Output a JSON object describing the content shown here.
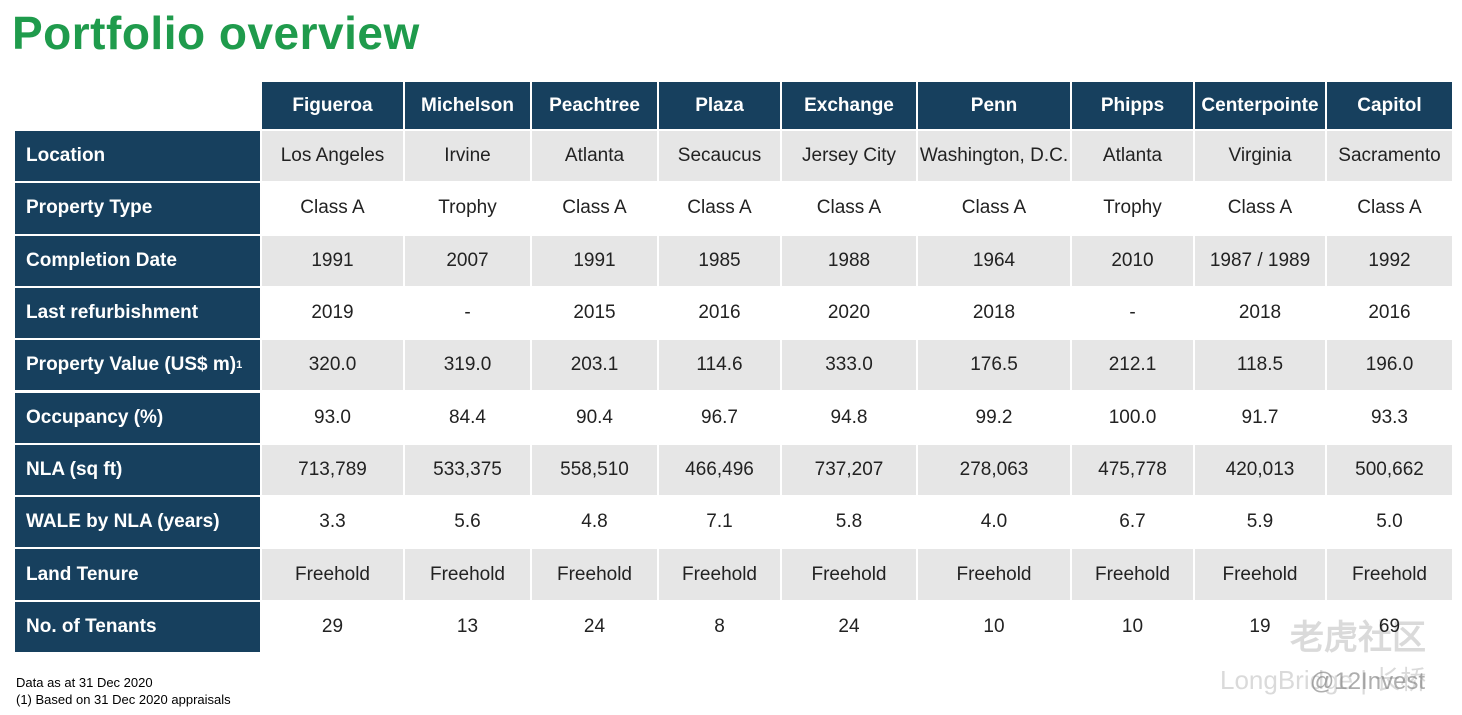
{
  "header": {
    "title": "Portfolio overview"
  },
  "table": {
    "columns": [
      "Figueroa",
      "Michelson",
      "Peachtree",
      "Plaza",
      "Exchange",
      "Penn",
      "Phipps",
      "Centerpointe",
      "Capitol"
    ],
    "rows": [
      {
        "label": "Location",
        "cells": [
          "Los Angeles",
          "Irvine",
          "Atlanta",
          "Secaucus",
          "Jersey City",
          "Washington, D.C.",
          "Atlanta",
          "Virginia",
          "Sacramento"
        ]
      },
      {
        "label": "Property Type",
        "cells": [
          "Class A",
          "Trophy",
          "Class A",
          "Class A",
          "Class A",
          "Class A",
          "Trophy",
          "Class A",
          "Class A"
        ]
      },
      {
        "label": "Completion Date",
        "cells": [
          "1991",
          "2007",
          "1991",
          "1985",
          "1988",
          "1964",
          "2010",
          "1987 / 1989",
          "1992"
        ]
      },
      {
        "label": "Last refurbishment",
        "cells": [
          "2019",
          "-",
          "2015",
          "2016",
          "2020",
          "2018",
          "-",
          "2018",
          "2016"
        ]
      },
      {
        "label": "Property Value (US$ m)",
        "sup": "1",
        "cells": [
          "320.0",
          "319.0",
          "203.1",
          "114.6",
          "333.0",
          "176.5",
          "212.1",
          "118.5",
          "196.0"
        ]
      },
      {
        "label": "Occupancy (%)",
        "cells": [
          "93.0",
          "84.4",
          "90.4",
          "96.7",
          "94.8",
          "99.2",
          "100.0",
          "91.7",
          "93.3"
        ]
      },
      {
        "label": "NLA (sq ft)",
        "cells": [
          "713,789",
          "533,375",
          "558,510",
          "466,496",
          "737,207",
          "278,063",
          "475,778",
          "420,013",
          "500,662"
        ]
      },
      {
        "label": "WALE by NLA (years)",
        "cells": [
          "3.3",
          "5.6",
          "4.8",
          "7.1",
          "5.8",
          "4.0",
          "6.7",
          "5.9",
          "5.0"
        ]
      },
      {
        "label": "Land Tenure",
        "cells": [
          "Freehold",
          "Freehold",
          "Freehold",
          "Freehold",
          "Freehold",
          "Freehold",
          "Freehold",
          "Freehold",
          "Freehold"
        ]
      },
      {
        "label": "No. of Tenants",
        "cells": [
          "29",
          "13",
          "24",
          "8",
          "24",
          "10",
          "10",
          "19",
          "69"
        ]
      }
    ]
  },
  "footnotes": [
    "Data as at 31 Dec 2020",
    "(1)   Based on 31 Dec 2020 appraisals"
  ],
  "watermark": {
    "brand": "老虎社区",
    "sub": "LongBridge | 长桥",
    "handle": "@12Invest"
  }
}
